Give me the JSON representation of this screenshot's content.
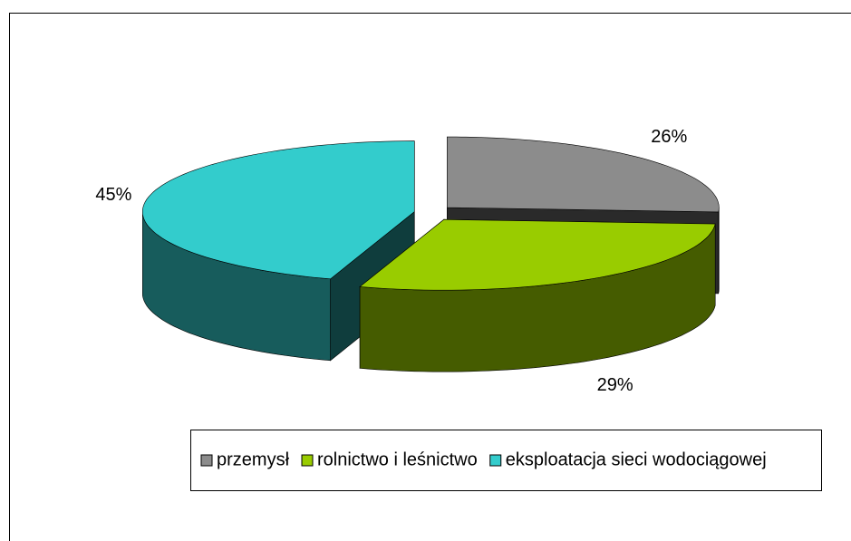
{
  "chart_data": {
    "type": "pie",
    "categories": [
      "przemysł",
      "rolnictwo i leśnictwo",
      "eksploatacja sieci wodociągowej"
    ],
    "values": [
      26,
      29,
      45
    ],
    "value_labels": [
      "26%",
      "29%",
      "45%"
    ],
    "colors": [
      "#8c8c8c",
      "#99cc00",
      "#33cccc"
    ],
    "legend": "bottom"
  }
}
